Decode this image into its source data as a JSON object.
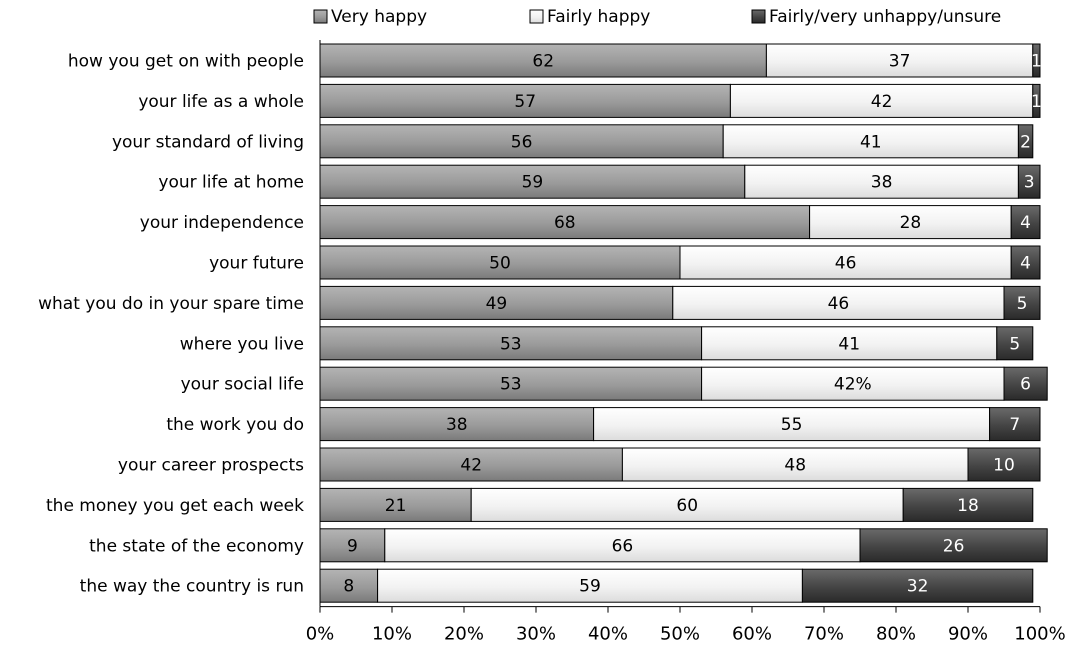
{
  "chart_data": {
    "type": "bar",
    "orientation": "horizontal",
    "stacked": true,
    "percent_stacked": true,
    "categories": [
      "how you get on with people",
      "your life as a whole",
      "your standard of living",
      "your life at home",
      "your independence",
      "your future",
      "what you do in your spare time",
      "where you live",
      "your social life",
      "the work you do",
      "your career prospects",
      "the money you get each week",
      "the state of the economy",
      "the way the country is run"
    ],
    "series": [
      {
        "name": "Very happy",
        "color": "#8c8c8c",
        "values": [
          62,
          57,
          56,
          59,
          68,
          50,
          49,
          53,
          53,
          38,
          42,
          21,
          9,
          8
        ],
        "labels": [
          "62",
          "57",
          "56",
          "59",
          "68",
          "50",
          "49",
          "53",
          "53",
          "38",
          "42",
          "21",
          "9",
          "8"
        ]
      },
      {
        "name": "Fairly happy",
        "color": "#ededed",
        "values": [
          37,
          42,
          41,
          38,
          28,
          46,
          46,
          41,
          42,
          55,
          48,
          60,
          66,
          59
        ],
        "labels": [
          "37",
          "42",
          "41",
          "38",
          "28",
          "46",
          "46",
          "41",
          "42%",
          "55",
          "48",
          "60",
          "66",
          "59"
        ]
      },
      {
        "name": "Fairly/very unhappy/unsure",
        "color": "#3c3c3c",
        "values": [
          1,
          1,
          2,
          3,
          4,
          4,
          5,
          5,
          6,
          7,
          10,
          18,
          26,
          32
        ],
        "labels": [
          "1",
          "1",
          "2",
          "3",
          "4",
          "4",
          "5",
          "5",
          "6",
          "7",
          "10",
          "18",
          "26",
          "32"
        ]
      }
    ],
    "xlim": [
      0,
      100
    ],
    "xticks": [
      "0%",
      "10%",
      "20%",
      "30%",
      "40%",
      "50%",
      "60%",
      "70%",
      "80%",
      "90%",
      "100%"
    ],
    "legend_position": "top",
    "grid": false
  }
}
